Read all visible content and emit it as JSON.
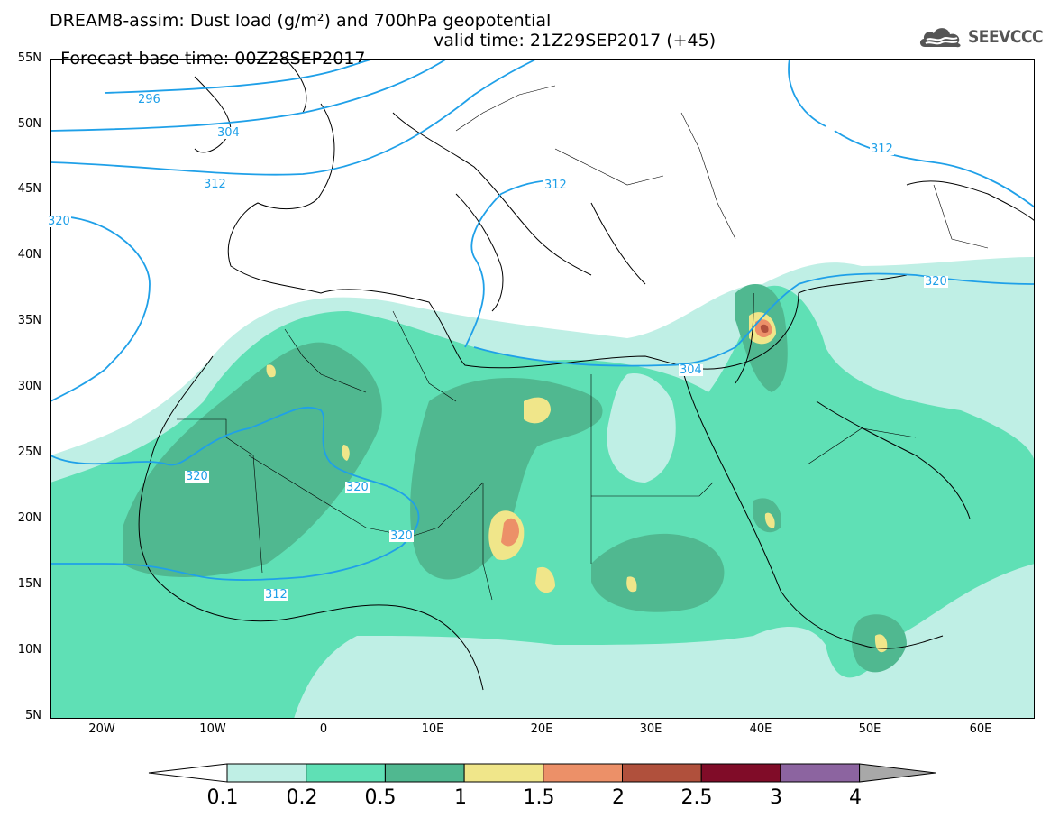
{
  "header": {
    "title_line1": "DREAM8-assim: Dust load (g/m²) and 700hPa geopotential",
    "base_time": "Forecast base time: 00Z28SEP2017",
    "valid_time": "valid time: 21Z29SEP2017 (+45)",
    "logo_text": "SEEVCCC",
    "logo_icon": "cloud-icon"
  },
  "map": {
    "lon_range": [
      -25,
      65
    ],
    "lat_range": [
      5,
      55
    ],
    "lat_labels": [
      "55N",
      "50N",
      "45N",
      "40N",
      "35N",
      "30N",
      "25N",
      "20N",
      "15N",
      "10N",
      "5N"
    ],
    "lon_labels": [
      "20W",
      "10W",
      "0",
      "10E",
      "20E",
      "30E",
      "40E",
      "50E",
      "60E"
    ],
    "contour_labels": [
      "296",
      "304",
      "312",
      "320",
      "320",
      "320",
      "320",
      "312",
      "312",
      "304",
      "312",
      "320"
    ],
    "contour_color": "#1fa0e8"
  },
  "legend": {
    "labels": [
      "0.1",
      "0.2",
      "0.5",
      "1",
      "1.5",
      "2",
      "2.5",
      "3",
      "4"
    ],
    "colors": [
      "#bfefe5",
      "#5fe0b5",
      "#50b890",
      "#f0e68a",
      "#ec9068",
      "#b0503c",
      "#800c28",
      "#8c64a0",
      "#a8a8a8"
    ]
  }
}
